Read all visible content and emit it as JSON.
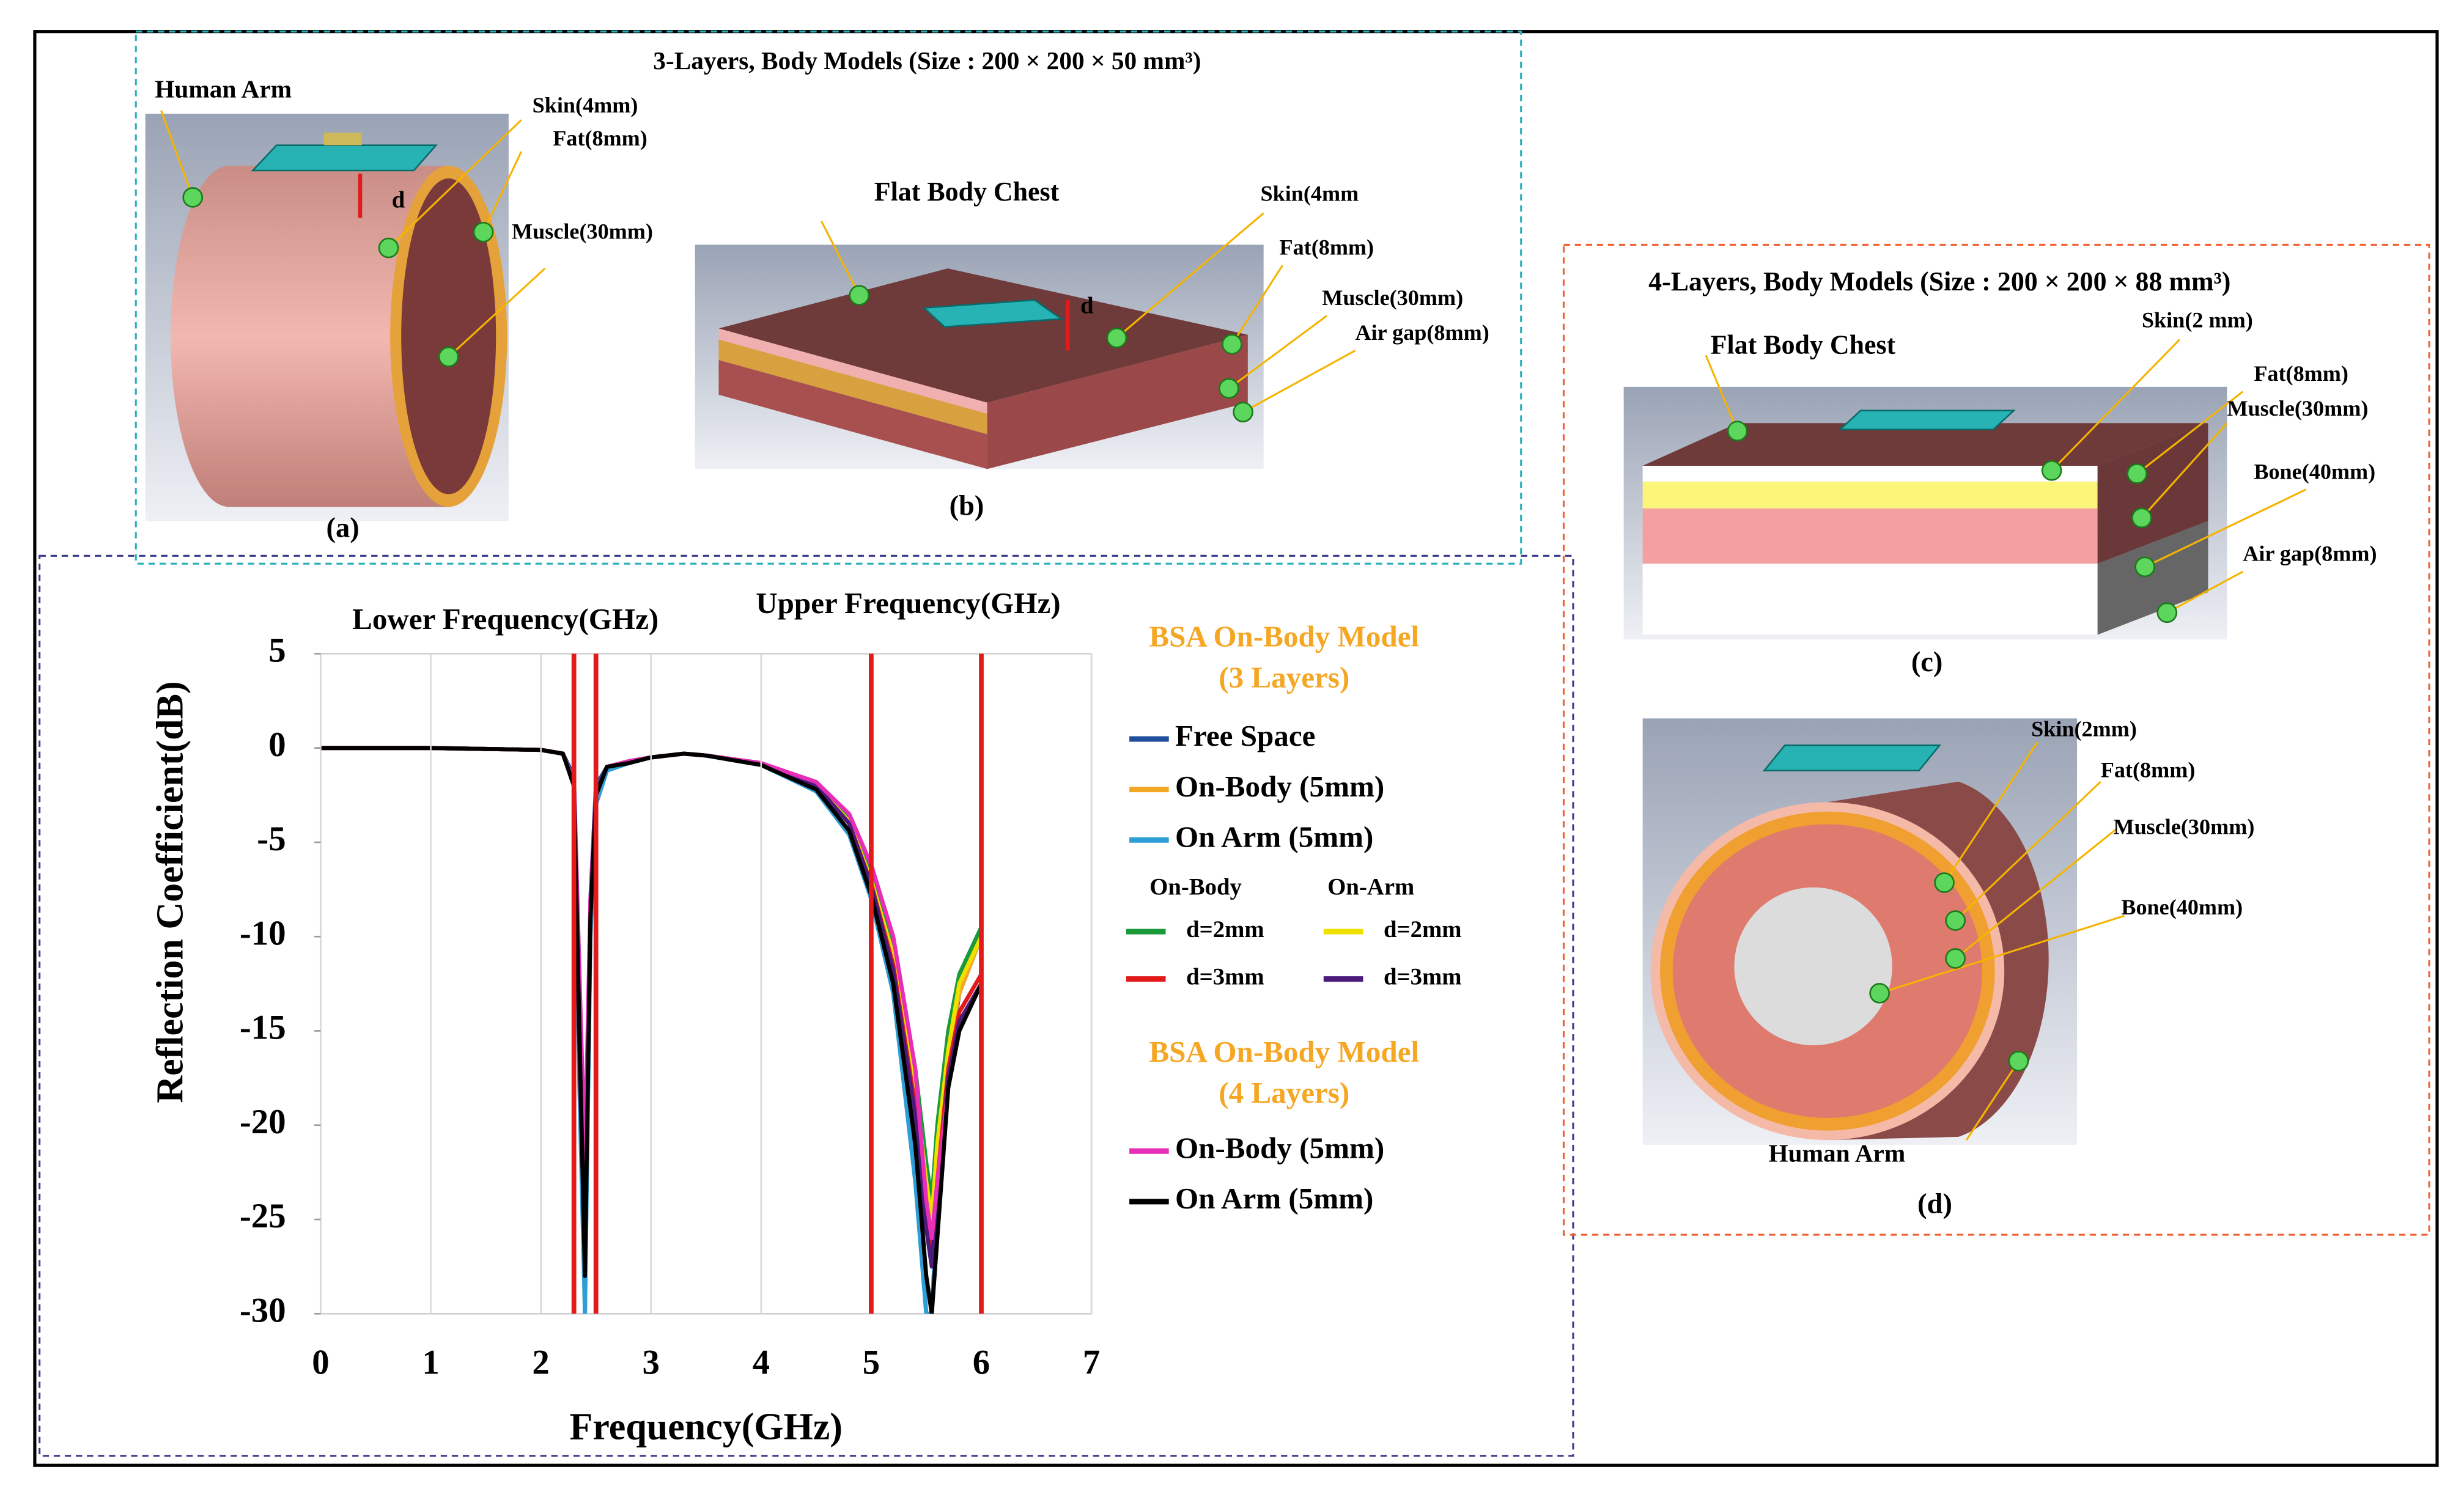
{
  "panels": {
    "a": {
      "title": "3-Layers, Body Models (Size : 200 × 200 × 50 mm³)",
      "arm": "Human Arm",
      "skin": "Skin(4mm)",
      "fat": "Fat(8mm)",
      "muscle": "Muscle(30mm)",
      "d": "d",
      "caption": "(a)"
    },
    "b": {
      "chest": "Flat Body Chest",
      "skin": "Skin(4mm",
      "fat": "Fat(8mm)",
      "muscle": "Muscle(30mm)",
      "air": "Air gap(8mm)",
      "d": "d",
      "caption": "(b)"
    },
    "c": {
      "title": "4-Layers, Body Models (Size : 200 × 200 × 88 mm³)",
      "chest": "Flat Body Chest",
      "skin": "Skin(2 mm)",
      "fat": "Fat(8mm)",
      "muscle": "Muscle(30mm)",
      "bone": "Bone(40mm)",
      "air": "Air gap(8mm)",
      "caption": "(c)"
    },
    "d": {
      "skin": "Skin(2mm)",
      "fat": "Fat(8mm)",
      "muscle": "Muscle(30mm)",
      "bone": "Bone(40mm)",
      "arm": "Human Arm",
      "caption": "(d)"
    }
  },
  "chart_data": {
    "type": "line",
    "x_label": "Frequency(GHz)",
    "y_label": "Reflection Coefficient(dB)",
    "annotations": [
      "Lower Frequency(GHz)",
      "Upper Frequency(GHz)"
    ],
    "vlines": [
      2.3,
      2.5,
      5,
      6
    ],
    "vline_color": "#e31a1c",
    "xlim": [
      0,
      7
    ],
    "xticks": [
      0,
      1,
      2,
      3,
      4,
      5,
      6,
      7
    ],
    "ylim": [
      -30,
      5
    ],
    "yticks": [
      5,
      0,
      -5,
      -10,
      -15,
      -20,
      -25,
      -30
    ],
    "grid": "x",
    "legend_titles": [
      [
        "BSA On-Body Model",
        "(3 Layers)"
      ],
      [
        "BSA On-Body Model",
        "(4 Layers)"
      ]
    ],
    "legend_headers": [
      "On-Body",
      "On-Arm"
    ],
    "x": [
      0,
      1,
      2,
      2.2,
      2.3,
      2.35,
      2.4,
      2.45,
      2.5,
      2.6,
      2.8,
      3,
      3.3,
      3.5,
      4,
      4.5,
      4.8,
      5,
      5.2,
      5.4,
      5.5,
      5.55,
      5.6,
      5.7,
      5.8,
      6
    ],
    "series": [
      {
        "name": "Free Space",
        "color": "#1f4e9c",
        "values": [
          0,
          0,
          -0.1,
          -0.3,
          -1.5,
          -12,
          -30,
          -8,
          -2,
          -1,
          -0.7,
          -0.5,
          -0.3,
          -0.4,
          -0.9,
          -2.2,
          -4.5,
          -8,
          -13,
          -22,
          -30,
          -30,
          -25,
          -17,
          -13,
          -10
        ]
      },
      {
        "name": "On-Body (5mm)",
        "color": "#f5a623",
        "values": [
          0,
          0,
          -0.1,
          -0.3,
          -2,
          -15,
          -26,
          -9,
          -2.5,
          -1,
          -0.7,
          -0.5,
          -0.3,
          -0.4,
          -0.8,
          -2,
          -4,
          -7,
          -11,
          -18,
          -24,
          -26,
          -22,
          -16,
          -13,
          -10
        ]
      },
      {
        "name": "On Arm (5mm)",
        "color": "#2e9fd6",
        "values": [
          0,
          0,
          -0.1,
          -0.3,
          -2,
          -18,
          -30,
          -10,
          -3,
          -1.2,
          -0.8,
          -0.5,
          -0.3,
          -0.4,
          -0.9,
          -2.3,
          -4.6,
          -8,
          -13,
          -23,
          -30,
          -30,
          -24,
          -18,
          -15,
          -12.5
        ]
      },
      {
        "name": "d=2mm",
        "color": "#1a9a3a",
        "values": [
          0,
          0,
          -0.1,
          -0.3,
          -2,
          -14,
          -25,
          -9,
          -2.5,
          -1,
          -0.7,
          -0.5,
          -0.3,
          -0.4,
          -0.8,
          -1.9,
          -3.8,
          -6.8,
          -10.5,
          -17,
          -22,
          -24,
          -20,
          -15,
          -12,
          -9.5
        ]
      },
      {
        "name": "d=2mm",
        "color": "#f0e000",
        "values": [
          0,
          0,
          -0.1,
          -0.3,
          -2,
          -14,
          -25,
          -9,
          -2.5,
          -1,
          -0.7,
          -0.5,
          -0.3,
          -0.4,
          -0.8,
          -2,
          -3.9,
          -7,
          -11,
          -18,
          -23,
          -25,
          -21,
          -16,
          -12.5,
          -10
        ]
      },
      {
        "name": "d=3mm",
        "color": "#e31a1c",
        "values": [
          0,
          0,
          -0.1,
          -0.3,
          -2,
          -16,
          -27,
          -9,
          -2.5,
          -1,
          -0.7,
          -0.5,
          -0.3,
          -0.4,
          -0.8,
          -2,
          -4,
          -7.2,
          -11.5,
          -19,
          -25,
          -27,
          -23,
          -17,
          -14,
          -12
        ]
      },
      {
        "name": "d=3mm",
        "color": "#4b1a7a",
        "values": [
          0,
          0,
          -0.1,
          -0.3,
          -2,
          -16,
          -27,
          -9,
          -2.5,
          -1,
          -0.7,
          -0.5,
          -0.3,
          -0.4,
          -0.8,
          -2,
          -4,
          -7.3,
          -11.8,
          -19.5,
          -25.5,
          -27.5,
          -23.5,
          -17.5,
          -14.5,
          -12.5
        ]
      },
      {
        "name": "On-Body (5mm)",
        "color": "#e62eb8",
        "values": [
          0,
          0,
          -0.1,
          -0.3,
          -1.8,
          -12,
          -22,
          -8,
          -2.5,
          -1,
          -0.7,
          -0.5,
          -0.3,
          -0.4,
          -0.8,
          -1.8,
          -3.5,
          -6.2,
          -10,
          -17,
          -24,
          -26,
          -23,
          -18,
          -15,
          -12.5
        ]
      },
      {
        "name": "On Arm (5mm)",
        "color": "#000000",
        "values": [
          0,
          0,
          -0.1,
          -0.3,
          -2,
          -15,
          -28,
          -9,
          -2.5,
          -1,
          -0.8,
          -0.5,
          -0.3,
          -0.4,
          -0.9,
          -2.2,
          -4.4,
          -7.8,
          -12.5,
          -21,
          -28,
          -30,
          -26,
          -18,
          -15,
          -12.5
        ]
      }
    ]
  }
}
